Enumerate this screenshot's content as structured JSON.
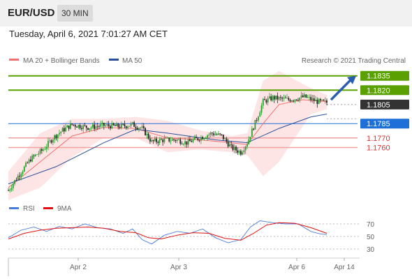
{
  "header": {
    "pair": "EUR/USD",
    "timeframe": "30 MIN",
    "datetime": "Tuesday, April 6, 2021 7:01:27 AM CET"
  },
  "legend": {
    "ma20": "MA 20 + Bollinger Bands",
    "ma50": "MA 50",
    "credit": "Research © 2021 Trading Central"
  },
  "rsi_legend": {
    "rsi": "RSI",
    "ma9": "9MA"
  },
  "colors": {
    "up_levels": "#5aa000",
    "current": "#333333",
    "pivot": "#1e6fd8",
    "down_levels": "#e03030",
    "ma20": "#f07070",
    "ma50": "#2a4f9a",
    "bollinger": "#fcdcdc",
    "rsi": "#4a7bd8",
    "rsi_ma": "#e01010",
    "arrow": "#2a5db0"
  },
  "chart_data": [
    {
      "type": "candlestick",
      "x_tick_labels": [
        "Apr 2",
        "Apr 3",
        "Apr 6",
        "Apr 14"
      ],
      "price_levels": [
        {
          "value": 1.1835,
          "label": "1.1835",
          "kind": "resistance"
        },
        {
          "value": 1.182,
          "label": "1.1820",
          "kind": "resistance"
        },
        {
          "value": 1.1805,
          "label": "1.1805",
          "kind": "current"
        },
        {
          "value": 1.1785,
          "label": "1.1785",
          "kind": "pivot"
        },
        {
          "value": 1.177,
          "label": "1.1770",
          "kind": "support"
        },
        {
          "value": 1.176,
          "label": "1.1760",
          "kind": "support"
        }
      ],
      "ylim": [
        1.171,
        1.1845
      ],
      "close_path": [
        [
          0,
          1.1715
        ],
        [
          6,
          1.173
        ],
        [
          14,
          1.1748
        ],
        [
          22,
          1.1758
        ],
        [
          28,
          1.177
        ],
        [
          34,
          1.1778
        ],
        [
          40,
          1.1784
        ],
        [
          50,
          1.1781
        ],
        [
          60,
          1.1783
        ],
        [
          70,
          1.1782
        ],
        [
          78,
          1.1784
        ],
        [
          84,
          1.178
        ],
        [
          90,
          1.1766
        ],
        [
          98,
          1.1768
        ],
        [
          106,
          1.1768
        ],
        [
          112,
          1.1765
        ],
        [
          120,
          1.177
        ],
        [
          128,
          1.1775
        ],
        [
          134,
          1.1772
        ],
        [
          140,
          1.176
        ],
        [
          146,
          1.1755
        ],
        [
          150,
          1.1765
        ],
        [
          156,
          1.179
        ],
        [
          160,
          1.1808
        ],
        [
          166,
          1.1812
        ],
        [
          176,
          1.181
        ],
        [
          186,
          1.1813
        ],
        [
          194,
          1.1808
        ],
        [
          200,
          1.1807
        ]
      ],
      "ma20_path": [
        [
          0,
          1.1718
        ],
        [
          20,
          1.1745
        ],
        [
          40,
          1.1772
        ],
        [
          60,
          1.1781
        ],
        [
          80,
          1.178
        ],
        [
          100,
          1.177
        ],
        [
          120,
          1.1768
        ],
        [
          140,
          1.1765
        ],
        [
          150,
          1.1763
        ],
        [
          160,
          1.1785
        ],
        [
          170,
          1.1805
        ],
        [
          185,
          1.181
        ],
        [
          200,
          1.1808
        ]
      ],
      "ma50_path": [
        [
          0,
          1.1722
        ],
        [
          30,
          1.174
        ],
        [
          60,
          1.1765
        ],
        [
          80,
          1.1779
        ],
        [
          100,
          1.1775
        ],
        [
          130,
          1.1768
        ],
        [
          150,
          1.1765
        ],
        [
          170,
          1.178
        ],
        [
          190,
          1.1792
        ],
        [
          200,
          1.1795
        ]
      ],
      "bollinger_upper": [
        [
          0,
          1.1735
        ],
        [
          20,
          1.1775
        ],
        [
          40,
          1.179
        ],
        [
          60,
          1.179
        ],
        [
          80,
          1.1792
        ],
        [
          100,
          1.1788
        ],
        [
          120,
          1.1778
        ],
        [
          140,
          1.1772
        ],
        [
          150,
          1.1775
        ],
        [
          160,
          1.183
        ],
        [
          170,
          1.184
        ],
        [
          190,
          1.1822
        ],
        [
          200,
          1.1815
        ]
      ],
      "bollinger_lower": [
        [
          0,
          1.1705
        ],
        [
          20,
          1.1718
        ],
        [
          40,
          1.175
        ],
        [
          60,
          1.177
        ],
        [
          80,
          1.177
        ],
        [
          100,
          1.1755
        ],
        [
          120,
          1.1758
        ],
        [
          140,
          1.1755
        ],
        [
          150,
          1.1752
        ],
        [
          160,
          1.173
        ],
        [
          170,
          1.1745
        ],
        [
          190,
          1.1795
        ],
        [
          200,
          1.18
        ]
      ],
      "arrow_target": 1.1835
    },
    {
      "type": "line",
      "title": "RSI",
      "y_tick_labels": [
        "70",
        "50",
        "30"
      ],
      "ylim": [
        20,
        80
      ],
      "rsi_path": [
        [
          0,
          48
        ],
        [
          8,
          60
        ],
        [
          16,
          65
        ],
        [
          24,
          58
        ],
        [
          32,
          66
        ],
        [
          40,
          62
        ],
        [
          48,
          70
        ],
        [
          56,
          64
        ],
        [
          64,
          62
        ],
        [
          72,
          55
        ],
        [
          78,
          62
        ],
        [
          84,
          45
        ],
        [
          90,
          38
        ],
        [
          98,
          52
        ],
        [
          106,
          58
        ],
        [
          114,
          55
        ],
        [
          122,
          62
        ],
        [
          130,
          48
        ],
        [
          138,
          40
        ],
        [
          146,
          45
        ],
        [
          152,
          65
        ],
        [
          158,
          75
        ],
        [
          166,
          72
        ],
        [
          174,
          70
        ],
        [
          182,
          70
        ],
        [
          190,
          58
        ],
        [
          196,
          54
        ],
        [
          200,
          53
        ]
      ],
      "ma9_path": [
        [
          0,
          46
        ],
        [
          10,
          55
        ],
        [
          20,
          60
        ],
        [
          30,
          63
        ],
        [
          40,
          64
        ],
        [
          50,
          65
        ],
        [
          60,
          63
        ],
        [
          70,
          58
        ],
        [
          80,
          56
        ],
        [
          88,
          48
        ],
        [
          96,
          46
        ],
        [
          106,
          52
        ],
        [
          116,
          56
        ],
        [
          126,
          55
        ],
        [
          136,
          47
        ],
        [
          146,
          44
        ],
        [
          154,
          55
        ],
        [
          162,
          68
        ],
        [
          170,
          72
        ],
        [
          180,
          71
        ],
        [
          190,
          64
        ],
        [
          200,
          55
        ]
      ]
    }
  ]
}
